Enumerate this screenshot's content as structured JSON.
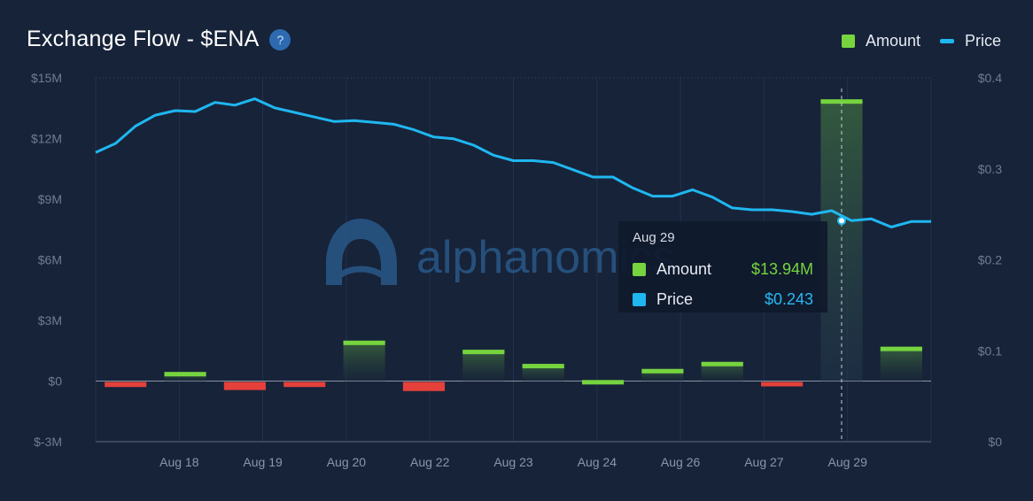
{
  "header": {
    "title": "Exchange Flow - $ENA",
    "help_icon": "?"
  },
  "legend": [
    {
      "label": "Amount",
      "color": "#76d43f",
      "icon": "square"
    },
    {
      "label": "Price",
      "color": "#1fb7f0",
      "icon": "line"
    }
  ],
  "tooltip": {
    "date": "Aug 29",
    "rows": [
      {
        "label": "Amount",
        "value": "$13.94M",
        "color": "#76d43f"
      },
      {
        "label": "Price",
        "value": "$0.243",
        "color": "#1fb7f0"
      }
    ]
  },
  "watermark": "alphanomics",
  "chart_data": {
    "type": "bar",
    "title": "Exchange Flow - $ENA",
    "x_ticks": [
      "Aug 18",
      "Aug 19",
      "Aug 20",
      "Aug 22",
      "Aug 23",
      "Aug 24",
      "Aug 26",
      "Aug 27",
      "Aug 29"
    ],
    "y_left": {
      "ticks": [
        "$15M",
        "$12M",
        "$9M",
        "$6M",
        "$3M",
        "$0",
        "$-3M"
      ],
      "range": [
        -3,
        15
      ],
      "unit": "M"
    },
    "y_right": {
      "ticks": [
        "$0.4",
        "$0.3",
        "$0.2",
        "$0.1",
        "$0"
      ],
      "range": [
        0,
        0.4
      ]
    },
    "grid": "vertical",
    "legend_position": "top-right",
    "series": [
      {
        "name": "Amount",
        "type": "bar",
        "axis": "left",
        "color_positive": "#76d43f",
        "color_negative": "#e5403a",
        "values": [
          -0.25,
          0.45,
          -0.4,
          -0.25,
          2.0,
          -0.45,
          1.55,
          0.85,
          0.05,
          0.6,
          0.95,
          -0.15,
          13.94,
          1.7
        ]
      },
      {
        "name": "Price",
        "type": "line",
        "axis": "right",
        "color": "#1fb7f0",
        "values": [
          0.318,
          0.328,
          0.347,
          0.359,
          0.364,
          0.363,
          0.373,
          0.37,
          0.377,
          0.367,
          0.362,
          0.357,
          0.352,
          0.353,
          0.351,
          0.349,
          0.343,
          0.335,
          0.333,
          0.326,
          0.315,
          0.309,
          0.309,
          0.307,
          0.299,
          0.291,
          0.291,
          0.279,
          0.27,
          0.27,
          0.277,
          0.269,
          0.257,
          0.255,
          0.255,
          0.253,
          0.25,
          0.254,
          0.243,
          0.245,
          0.236,
          0.242,
          0.242
        ]
      }
    ],
    "highlight_index": 12
  }
}
